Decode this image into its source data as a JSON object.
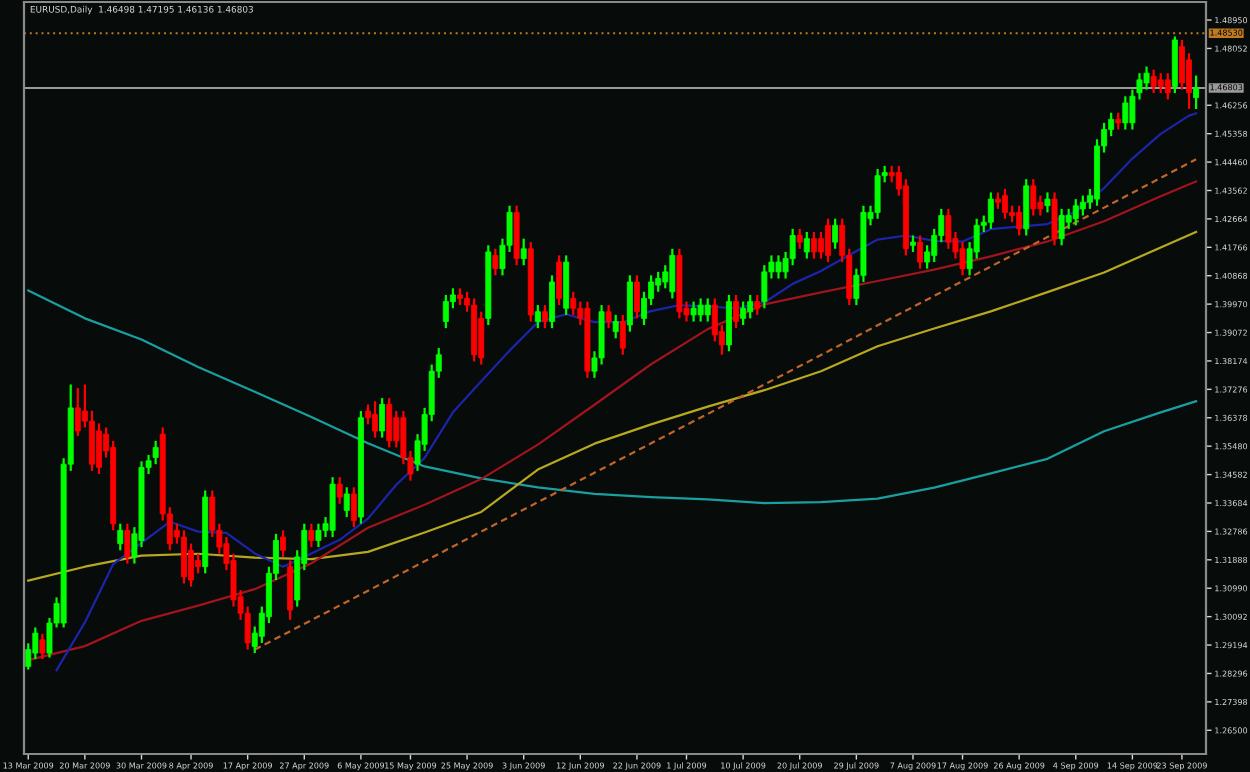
{
  "chart_data": {
    "type": "candlestick",
    "title": "EURUSD,Daily  1.46498 1.47195 1.46136 1.46803",
    "categories": [
      "13 Mar 2009",
      null,
      null,
      null,
      null,
      null,
      null,
      null,
      "20 Mar 2009",
      null,
      null,
      null,
      null,
      null,
      null,
      null,
      "30 Mar 2009",
      null,
      null,
      null,
      null,
      null,
      null,
      "8 Apr 2009",
      null,
      null,
      null,
      null,
      null,
      null,
      null,
      "17 Apr 2009",
      null,
      null,
      null,
      null,
      null,
      null,
      null,
      "27 Apr 2009",
      null,
      null,
      null,
      null,
      null,
      null,
      null,
      "6 May 2009",
      null,
      null,
      null,
      null,
      null,
      null,
      "15 May 2009",
      null,
      null,
      null,
      null,
      null,
      null,
      null,
      "25 May 2009",
      null,
      null,
      null,
      null,
      null,
      null,
      null,
      "3 Jun 2009",
      null,
      null,
      null,
      null,
      null,
      null,
      null,
      "12 Jun 2009",
      null,
      null,
      null,
      null,
      null,
      null,
      null,
      "22 Jun 2009",
      null,
      null,
      null,
      null,
      null,
      null,
      "1 Jul 2009",
      null,
      null,
      null,
      null,
      null,
      null,
      null,
      "10 Jul 2009",
      null,
      null,
      null,
      null,
      null,
      null,
      null,
      "20 Jul 2009",
      null,
      null,
      null,
      null,
      null,
      null,
      null,
      "29 Jul 2009",
      null,
      null,
      null,
      null,
      null,
      null,
      null,
      "7 Aug 2009",
      null,
      null,
      null,
      null,
      null,
      null,
      "17 Aug 2009",
      null,
      null,
      null,
      null,
      null,
      null,
      null,
      "26 Aug 2009",
      null,
      null,
      null,
      null,
      null,
      null,
      null,
      "4 Sep 2009",
      null,
      null,
      null,
      null,
      null,
      null,
      null,
      "14 Sep 2009",
      null,
      null,
      null,
      null,
      null,
      null,
      "23 Sep 2009",
      null,
      null
    ],
    "ohlc": [
      [
        1.2852,
        1.2925,
        1.2842,
        1.2905
      ],
      [
        1.2894,
        1.2975,
        1.2875,
        1.2957
      ],
      [
        1.2936,
        1.2955,
        1.2875,
        1.2894
      ],
      [
        1.2894,
        1.3005,
        1.288,
        1.2989
      ],
      [
        1.2989,
        1.307,
        1.2975,
        1.3051
      ],
      [
        1.2989,
        1.351,
        1.2975,
        1.3491
      ],
      [
        1.3491,
        1.3743,
        1.347,
        1.3669
      ],
      [
        1.3669,
        1.3732,
        1.358,
        1.3596
      ],
      [
        1.3659,
        1.3743,
        1.3607,
        1.3627
      ],
      [
        1.3627,
        1.366,
        1.347,
        1.3491
      ],
      [
        1.3596,
        1.362,
        1.346,
        1.3481
      ],
      [
        1.3586,
        1.3607,
        1.3512,
        1.3533
      ],
      [
        1.3544,
        1.3565,
        1.3282,
        1.3303
      ],
      [
        1.324,
        1.3303,
        1.3219,
        1.3282
      ],
      [
        1.3282,
        1.3303,
        1.3177,
        1.3198
      ],
      [
        1.3198,
        1.3292,
        1.3177,
        1.3271
      ],
      [
        1.325,
        1.35,
        1.3229,
        1.3481
      ],
      [
        1.3481,
        1.352,
        1.346,
        1.3502
      ],
      [
        1.3512,
        1.3565,
        1.3491,
        1.3544
      ],
      [
        1.3586,
        1.3607,
        1.3313,
        1.3334
      ],
      [
        1.3334,
        1.3355,
        1.3219,
        1.324
      ],
      [
        1.3282,
        1.3303,
        1.324,
        1.3261
      ],
      [
        1.3261,
        1.3282,
        1.3114,
        1.3135
      ],
      [
        1.3219,
        1.324,
        1.3104,
        1.3125
      ],
      [
        1.3187,
        1.3208,
        1.3146,
        1.3167
      ],
      [
        1.3167,
        1.3408,
        1.3146,
        1.3387
      ],
      [
        1.3387,
        1.3408,
        1.3261,
        1.3282
      ],
      [
        1.3282,
        1.3303,
        1.3208,
        1.3229
      ],
      [
        1.324,
        1.3261,
        1.3156,
        1.3177
      ],
      [
        1.3187,
        1.3208,
        1.3041,
        1.3062
      ],
      [
        1.3072,
        1.3093,
        1.2999,
        1.302
      ],
      [
        1.302,
        1.3041,
        1.2905,
        1.2926
      ],
      [
        1.2915,
        1.2978,
        1.2894,
        1.2957
      ],
      [
        1.2947,
        1.3041,
        1.2926,
        1.302
      ],
      [
        1.3009,
        1.3167,
        1.2989,
        1.3146
      ],
      [
        1.3146,
        1.3271,
        1.3125,
        1.325
      ],
      [
        1.3261,
        1.3282,
        1.3198,
        1.3219
      ],
      [
        1.3167,
        1.3187,
        1.2999,
        1.303
      ],
      [
        1.3062,
        1.3219,
        1.3041,
        1.3198
      ],
      [
        1.3177,
        1.3303,
        1.3156,
        1.3282
      ],
      [
        1.3282,
        1.3303,
        1.3229,
        1.325
      ],
      [
        1.325,
        1.3303,
        1.3229,
        1.3282
      ],
      [
        1.3282,
        1.3324,
        1.3261,
        1.3303
      ],
      [
        1.3282,
        1.345,
        1.3261,
        1.3428
      ],
      [
        1.3428,
        1.345,
        1.3366,
        1.3387
      ],
      [
        1.3345,
        1.3418,
        1.3324,
        1.3397
      ],
      [
        1.3397,
        1.3418,
        1.3292,
        1.3313
      ],
      [
        1.3324,
        1.3659,
        1.3303,
        1.3638
      ],
      [
        1.3659,
        1.368,
        1.3617,
        1.3638
      ],
      [
        1.3648,
        1.369,
        1.3575,
        1.3596
      ],
      [
        1.3596,
        1.37,
        1.3575,
        1.368
      ],
      [
        1.368,
        1.37,
        1.3544,
        1.3565
      ],
      [
        1.3638,
        1.3659,
        1.3544,
        1.3565
      ],
      [
        1.3638,
        1.3659,
        1.3491,
        1.3512
      ],
      [
        1.3512,
        1.3533,
        1.3439,
        1.346
      ],
      [
        1.3491,
        1.3586,
        1.347,
        1.3565
      ],
      [
        1.3554,
        1.3669,
        1.3533,
        1.3648
      ],
      [
        1.3648,
        1.3806,
        1.3627,
        1.3785
      ],
      [
        1.3785,
        1.3858,
        1.3764,
        1.3837
      ],
      [
        1.3942,
        1.4026,
        1.3921,
        1.4005
      ],
      [
        1.4005,
        1.4047,
        1.3984,
        1.4026
      ],
      [
        1.4026,
        1.4047,
        1.3994,
        1.4015
      ],
      [
        1.4015,
        1.4036,
        1.3973,
        1.3994
      ],
      [
        1.3994,
        1.4015,
        1.3816,
        1.3837
      ],
      [
        1.3952,
        1.3973,
        1.3806,
        1.3827
      ],
      [
        1.3952,
        1.4183,
        1.3931,
        1.4162
      ],
      [
        1.4151,
        1.4172,
        1.4088,
        1.4109
      ],
      [
        1.4109,
        1.4204,
        1.4088,
        1.4183
      ],
      [
        1.4183,
        1.4308,
        1.4162,
        1.4287
      ],
      [
        1.4287,
        1.4308,
        1.412,
        1.4141
      ],
      [
        1.4141,
        1.4204,
        1.412,
        1.4172
      ],
      [
        1.4172,
        1.4193,
        1.3942,
        1.3963
      ],
      [
        1.3942,
        1.3994,
        1.3921,
        1.3973
      ],
      [
        1.3973,
        1.3994,
        1.3921,
        1.3942
      ],
      [
        1.3942,
        1.4088,
        1.3921,
        1.4067
      ],
      [
        1.413,
        1.4151,
        1.3994,
        1.4015
      ],
      [
        1.3984,
        1.4151,
        1.3963,
        1.413
      ],
      [
        1.4015,
        1.4036,
        1.3963,
        1.3984
      ],
      [
        1.3984,
        1.4005,
        1.3931,
        1.3952
      ],
      [
        1.3984,
        1.4005,
        1.3764,
        1.3785
      ],
      [
        1.3785,
        1.3848,
        1.3764,
        1.3827
      ],
      [
        1.3827,
        1.3994,
        1.3806,
        1.3973
      ],
      [
        1.3973,
        1.3994,
        1.3921,
        1.3942
      ],
      [
        1.391,
        1.3963,
        1.3889,
        1.3942
      ],
      [
        1.3942,
        1.3963,
        1.3837,
        1.3858
      ],
      [
        1.3931,
        1.4088,
        1.391,
        1.4067
      ],
      [
        1.4067,
        1.4088,
        1.3952,
        1.3973
      ],
      [
        1.3952,
        1.4036,
        1.3931,
        1.4015
      ],
      [
        1.4015,
        1.4088,
        1.3994,
        1.4067
      ],
      [
        1.4057,
        1.4099,
        1.4036,
        1.4078
      ],
      [
        1.4067,
        1.412,
        1.4047,
        1.4099
      ],
      [
        1.4036,
        1.4172,
        1.4015,
        1.4151
      ],
      [
        1.4151,
        1.4172,
        1.3952,
        1.3973
      ],
      [
        1.3984,
        1.4005,
        1.3942,
        1.3963
      ],
      [
        1.3963,
        1.4005,
        1.3942,
        1.3984
      ],
      [
        1.3963,
        1.4015,
        1.3942,
        1.3994
      ],
      [
        1.3963,
        1.4015,
        1.3942,
        1.3994
      ],
      [
        1.3994,
        1.4015,
        1.3879,
        1.39
      ],
      [
        1.391,
        1.3931,
        1.3837,
        1.3868
      ],
      [
        1.3868,
        1.4026,
        1.3848,
        1.4005
      ],
      [
        1.4005,
        1.4026,
        1.3921,
        1.3942
      ],
      [
        1.3952,
        1.4005,
        1.3931,
        1.3984
      ],
      [
        1.3973,
        1.4026,
        1.3952,
        1.4005
      ],
      [
        1.4005,
        1.4026,
        1.3963,
        1.3984
      ],
      [
        1.4005,
        1.412,
        1.3984,
        1.4099
      ],
      [
        1.4099,
        1.4151,
        1.4078,
        1.413
      ],
      [
        1.4099,
        1.4151,
        1.4078,
        1.413
      ],
      [
        1.4099,
        1.4162,
        1.4078,
        1.4141
      ],
      [
        1.4141,
        1.4235,
        1.412,
        1.4214
      ],
      [
        1.4214,
        1.4235,
        1.4172,
        1.4193
      ],
      [
        1.4162,
        1.4225,
        1.4141,
        1.4204
      ],
      [
        1.4204,
        1.4225,
        1.4141,
        1.4162
      ],
      [
        1.4204,
        1.4225,
        1.4141,
        1.4162
      ],
      [
        1.4246,
        1.4267,
        1.413,
        1.4151
      ],
      [
        1.4193,
        1.4267,
        1.4172,
        1.4246
      ],
      [
        1.4246,
        1.4267,
        1.413,
        1.4151
      ],
      [
        1.4151,
        1.4172,
        1.3994,
        1.4015
      ],
      [
        1.4015,
        1.4109,
        1.3994,
        1.4088
      ],
      [
        1.4088,
        1.4308,
        1.4067,
        1.4287
      ],
      [
        1.4267,
        1.4308,
        1.4246,
        1.4287
      ],
      [
        1.4287,
        1.4424,
        1.4267,
        1.4403
      ],
      [
        1.4403,
        1.4434,
        1.4382,
        1.4413
      ],
      [
        1.4413,
        1.4434,
        1.4382,
        1.4403
      ],
      [
        1.4413,
        1.4434,
        1.434,
        1.4361
      ],
      [
        1.4371,
        1.4392,
        1.4151,
        1.4172
      ],
      [
        1.4183,
        1.4214,
        1.4162,
        1.4193
      ],
      [
        1.4193,
        1.4214,
        1.4109,
        1.413
      ],
      [
        1.413,
        1.4183,
        1.4109,
        1.4162
      ],
      [
        1.4151,
        1.4235,
        1.413,
        1.4214
      ],
      [
        1.4214,
        1.4298,
        1.4193,
        1.4277
      ],
      [
        1.4277,
        1.4298,
        1.4172,
        1.4193
      ],
      [
        1.4204,
        1.4225,
        1.4141,
        1.4162
      ],
      [
        1.4172,
        1.4193,
        1.4088,
        1.4109
      ],
      [
        1.4109,
        1.4193,
        1.4088,
        1.4172
      ],
      [
        1.4162,
        1.4267,
        1.4141,
        1.4246
      ],
      [
        1.4246,
        1.4277,
        1.4225,
        1.4256
      ],
      [
        1.4256,
        1.435,
        1.4235,
        1.4329
      ],
      [
        1.4329,
        1.435,
        1.4298,
        1.4319
      ],
      [
        1.434,
        1.4361,
        1.4267,
        1.4287
      ],
      [
        1.4287,
        1.4308,
        1.4256,
        1.4277
      ],
      [
        1.4287,
        1.4308,
        1.4214,
        1.4235
      ],
      [
        1.4235,
        1.4392,
        1.4214,
        1.4371
      ],
      [
        1.4371,
        1.4392,
        1.4277,
        1.4298
      ],
      [
        1.4319,
        1.434,
        1.4277,
        1.4298
      ],
      [
        1.4308,
        1.435,
        1.4287,
        1.4329
      ],
      [
        1.4329,
        1.435,
        1.4183,
        1.4204
      ],
      [
        1.4204,
        1.4298,
        1.4183,
        1.4277
      ],
      [
        1.4256,
        1.4298,
        1.4235,
        1.4277
      ],
      [
        1.4267,
        1.4329,
        1.4246,
        1.4308
      ],
      [
        1.4298,
        1.434,
        1.4277,
        1.4319
      ],
      [
        1.4319,
        1.4361,
        1.4298,
        1.434
      ],
      [
        1.4329,
        1.4518,
        1.4308,
        1.4497
      ],
      [
        1.4497,
        1.457,
        1.4476,
        1.4549
      ],
      [
        1.4549,
        1.4602,
        1.4528,
        1.4581
      ],
      [
        1.4581,
        1.4602,
        1.4549,
        1.457
      ],
      [
        1.457,
        1.4654,
        1.4549,
        1.4633
      ],
      [
        1.457,
        1.4675,
        1.4549,
        1.4654
      ],
      [
        1.4665,
        1.4727,
        1.4644,
        1.4706
      ],
      [
        1.4696,
        1.4748,
        1.4675,
        1.4727
      ],
      [
        1.4717,
        1.4738,
        1.4664,
        1.4685
      ],
      [
        1.4706,
        1.4727,
        1.4664,
        1.4685
      ],
      [
        1.4706,
        1.4727,
        1.4644,
        1.4665
      ],
      [
        1.4685,
        1.4843,
        1.4664,
        1.4832
      ],
      [
        1.4811,
        1.4832,
        1.4675,
        1.4696
      ],
      [
        1.4769,
        1.479,
        1.4614,
        1.4665
      ],
      [
        1.46498,
        1.47195,
        1.46136,
        1.46803
      ]
    ],
    "colors": [
      "#00ff00",
      "#00ff00",
      "#ff0000",
      "#00ff00",
      "#00ff00",
      "#00ff00",
      "#00ff00",
      "#ff0000",
      "#ff0000",
      "#ff0000",
      "#ff0000",
      "#ff0000",
      "#ff0000",
      "#00ff00",
      "#ff0000",
      "#00ff00",
      "#00ff00",
      "#00ff00",
      "#00ff00",
      "#ff0000",
      "#ff0000",
      "#ff0000",
      "#ff0000",
      "#ff0000",
      "#ff0000",
      "#00ff00",
      "#ff0000",
      "#ff0000",
      "#ff0000",
      "#ff0000",
      "#ff0000",
      "#ff0000",
      "#00ff00",
      "#00ff00",
      "#00ff00",
      "#00ff00",
      "#ff0000",
      "#ff0000",
      "#00ff00",
      "#00ff00",
      "#ff0000",
      "#00ff00",
      "#00ff00",
      "#00ff00",
      "#ff0000",
      "#00ff00",
      "#ff0000",
      "#00ff00",
      "#ff0000",
      "#ff0000",
      "#00ff00",
      "#ff0000",
      "#ff0000",
      "#ff0000",
      "#ff0000",
      "#00ff00",
      "#00ff00",
      "#00ff00",
      "#00ff00",
      "#00ff00",
      "#00ff00",
      "#ff0000",
      "#ff0000",
      "#ff0000",
      "#ff0000",
      "#00ff00",
      "#ff0000",
      "#00ff00",
      "#00ff00",
      "#ff0000",
      "#00ff00",
      "#ff0000",
      "#00ff00",
      "#ff0000",
      "#00ff00",
      "#ff0000",
      "#00ff00",
      "#ff0000",
      "#ff0000",
      "#ff0000",
      "#00ff00",
      "#00ff00",
      "#ff0000",
      "#00ff00",
      "#ff0000",
      "#00ff00",
      "#ff0000",
      "#00ff00",
      "#00ff00",
      "#00ff00",
      "#00ff00",
      "#00ff00",
      "#ff0000",
      "#ff0000",
      "#00ff00",
      "#00ff00",
      "#00ff00",
      "#ff0000",
      "#ff0000",
      "#00ff00",
      "#ff0000",
      "#00ff00",
      "#00ff00",
      "#ff0000",
      "#00ff00",
      "#00ff00",
      "#00ff00",
      "#00ff00",
      "#00ff00",
      "#ff0000",
      "#00ff00",
      "#ff0000",
      "#ff0000",
      "#ff0000",
      "#00ff00",
      "#ff0000",
      "#ff0000",
      "#00ff00",
      "#00ff00",
      "#00ff00",
      "#00ff00",
      "#00ff00",
      "#ff0000",
      "#ff0000",
      "#ff0000",
      "#00ff00",
      "#ff0000",
      "#00ff00",
      "#00ff00",
      "#00ff00",
      "#ff0000",
      "#ff0000",
      "#ff0000",
      "#00ff00",
      "#00ff00",
      "#00ff00",
      "#00ff00",
      "#ff0000",
      "#ff0000",
      "#ff0000",
      "#ff0000",
      "#00ff00",
      "#ff0000",
      "#ff0000",
      "#00ff00",
      "#ff0000",
      "#00ff00",
      "#00ff00",
      "#00ff00",
      "#00ff00",
      "#00ff00",
      "#00ff00",
      "#00ff00",
      "#00ff00",
      "#ff0000",
      "#00ff00",
      "#00ff00",
      "#00ff00",
      "#00ff00",
      "#ff0000",
      "#ff0000",
      "#ff0000",
      "#00ff00",
      "#ff0000",
      "#ff0000",
      "#00ff00"
    ],
    "series": [
      {
        "type": "line",
        "color": "#1a9fa0",
        "line_style": "solid",
        "values": [
          1.404,
          null,
          null,
          null,
          null,
          null,
          null,
          null,
          1.3952,
          null,
          null,
          null,
          null,
          null,
          null,
          null,
          1.3885,
          null,
          null,
          null,
          null,
          null,
          null,
          null,
          1.3798,
          null,
          null,
          null,
          null,
          null,
          null,
          null,
          1.372,
          null,
          null,
          null,
          null,
          null,
          null,
          null,
          1.364,
          null,
          null,
          null,
          null,
          null,
          null,
          null,
          1.3557,
          null,
          null,
          null,
          null,
          null,
          null,
          null,
          1.3484,
          null,
          null,
          null,
          null,
          null,
          null,
          null,
          1.3446,
          null,
          null,
          null,
          null,
          null,
          null,
          null,
          1.3418,
          null,
          null,
          null,
          null,
          null,
          null,
          null,
          1.3397,
          null,
          null,
          null,
          null,
          null,
          null,
          null,
          1.3387,
          null,
          null,
          null,
          null,
          null,
          null,
          null,
          1.338,
          null,
          null,
          null,
          null,
          null,
          null,
          null,
          1.3368,
          null,
          null,
          null,
          null,
          null,
          null,
          null,
          1.3371,
          null,
          null,
          null,
          null,
          null,
          null,
          null,
          1.3382,
          null,
          null,
          null,
          null,
          null,
          null,
          null,
          1.3417,
          null,
          null,
          null,
          null,
          null,
          null,
          null,
          1.3462,
          null,
          null,
          null,
          null,
          null,
          null,
          null,
          1.3508,
          null,
          null,
          null,
          null,
          null,
          null,
          null,
          1.3595,
          null,
          null,
          null,
          null,
          null,
          null,
          null,
          1.3655,
          null,
          null,
          null,
          null,
          1.369
        ]
      },
      {
        "type": "line",
        "color": "#b8a820",
        "line_style": "solid",
        "values": [
          1.3123,
          null,
          null,
          null,
          null,
          null,
          null,
          null,
          1.3167,
          null,
          null,
          null,
          null,
          null,
          null,
          null,
          1.3202,
          null,
          null,
          null,
          null,
          null,
          null,
          null,
          1.3208,
          null,
          null,
          null,
          null,
          null,
          null,
          null,
          1.3196,
          null,
          null,
          null,
          null,
          null,
          null,
          null,
          1.3191,
          null,
          null,
          null,
          null,
          null,
          null,
          null,
          1.3214,
          null,
          null,
          null,
          null,
          null,
          null,
          null,
          1.3275,
          null,
          null,
          null,
          null,
          null,
          null,
          null,
          1.334,
          null,
          null,
          null,
          null,
          null,
          null,
          null,
          1.3474,
          null,
          null,
          null,
          null,
          null,
          null,
          null,
          1.3556,
          null,
          null,
          null,
          null,
          null,
          null,
          null,
          1.3617,
          null,
          null,
          null,
          null,
          null,
          null,
          null,
          1.3673,
          null,
          null,
          null,
          null,
          null,
          null,
          null,
          1.3725,
          null,
          null,
          null,
          null,
          null,
          null,
          null,
          1.3785,
          null,
          null,
          null,
          null,
          null,
          null,
          null,
          1.3864,
          null,
          null,
          null,
          null,
          null,
          null,
          null,
          1.392,
          null,
          null,
          null,
          null,
          null,
          null,
          null,
          1.3974,
          null,
          null,
          null,
          null,
          null,
          null,
          null,
          1.4035,
          null,
          null,
          null,
          null,
          null,
          null,
          null,
          1.4097,
          null,
          null,
          null,
          null,
          null,
          null,
          null,
          1.4176,
          null,
          null,
          null,
          null,
          1.4225
        ]
      },
      {
        "type": "line",
        "color": "#a0141e",
        "line_style": "solid",
        "values": [
          1.2872,
          null,
          null,
          null,
          null,
          null,
          null,
          null,
          1.2916,
          null,
          null,
          null,
          null,
          null,
          null,
          null,
          1.2996,
          null,
          null,
          null,
          null,
          null,
          null,
          null,
          1.3044,
          null,
          null,
          null,
          null,
          null,
          null,
          null,
          1.3096,
          null,
          null,
          null,
          null,
          null,
          null,
          null,
          1.3178,
          null,
          null,
          null,
          null,
          null,
          null,
          null,
          1.329,
          null,
          null,
          null,
          null,
          null,
          null,
          null,
          1.3363,
          null,
          null,
          null,
          null,
          null,
          null,
          null,
          1.3444,
          null,
          null,
          null,
          null,
          null,
          null,
          null,
          1.3553,
          null,
          null,
          null,
          null,
          null,
          null,
          null,
          1.3679,
          null,
          null,
          null,
          null,
          null,
          null,
          null,
          1.3807,
          null,
          null,
          null,
          null,
          null,
          null,
          null,
          1.3918,
          null,
          null,
          null,
          null,
          null,
          null,
          null,
          1.3996,
          null,
          null,
          null,
          null,
          null,
          null,
          null,
          1.4034,
          null,
          null,
          null,
          null,
          null,
          null,
          null,
          1.407,
          null,
          null,
          null,
          null,
          null,
          null,
          null,
          1.4106,
          null,
          null,
          null,
          null,
          null,
          null,
          null,
          1.4148,
          null,
          null,
          null,
          null,
          null,
          null,
          null,
          1.4195,
          null,
          null,
          null,
          null,
          null,
          null,
          null,
          1.4259,
          null,
          null,
          null,
          null,
          null,
          null,
          null,
          1.4338,
          null,
          null,
          null,
          null,
          1.4385
        ]
      },
      {
        "type": "line",
        "color": "#1c24a8",
        "line_style": "solid",
        "values": [
          null,
          null,
          null,
          null,
          1.284,
          null,
          null,
          null,
          1.2991,
          null,
          null,
          null,
          1.3175,
          null,
          null,
          null,
          1.3242,
          null,
          null,
          null,
          1.3309,
          null,
          null,
          null,
          1.3278,
          null,
          null,
          null,
          1.3274,
          null,
          null,
          null,
          1.3209,
          null,
          null,
          null,
          1.3167,
          null,
          null,
          null,
          1.3209,
          null,
          null,
          null,
          1.3252,
          null,
          null,
          null,
          1.3319,
          null,
          null,
          null,
          1.3426,
          null,
          null,
          null,
          1.3511,
          null,
          null,
          null,
          1.3655,
          null,
          null,
          null,
          1.3753,
          null,
          null,
          null,
          1.385,
          null,
          null,
          null,
          1.394,
          null,
          null,
          null,
          1.3965,
          null,
          null,
          null,
          1.394,
          null,
          null,
          null,
          1.394,
          null,
          null,
          null,
          1.3975,
          null,
          null,
          null,
          1.3994,
          null,
          null,
          null,
          1.3989,
          null,
          null,
          null,
          1.3984,
          null,
          null,
          null,
          1.4002,
          null,
          null,
          null,
          1.4061,
          null,
          null,
          null,
          1.4102,
          null,
          null,
          null,
          1.4152,
          null,
          null,
          null,
          1.4201,
          null,
          null,
          null,
          1.4214,
          null,
          null,
          null,
          1.4197,
          null,
          null,
          null,
          1.4195,
          null,
          null,
          null,
          1.4234,
          null,
          null,
          null,
          1.4242,
          null,
          null,
          null,
          1.425,
          null,
          null,
          null,
          1.429,
          null,
          null,
          null,
          1.4364,
          null,
          null,
          null,
          1.4457,
          null,
          null,
          null,
          1.4535,
          null,
          null,
          null,
          1.4593,
          1.46
        ]
      },
      {
        "type": "line",
        "color": "#c0642a",
        "line_style": "dashed",
        "values": [
          null,
          null,
          null,
          null,
          null,
          null,
          null,
          null,
          null,
          null,
          null,
          null,
          null,
          null,
          null,
          null,
          null,
          null,
          null,
          null,
          null,
          null,
          null,
          null,
          null,
          null,
          null,
          null,
          null,
          null,
          null,
          null,
          1.2905,
          null,
          null,
          null,
          null,
          null,
          null,
          null,
          1.2998,
          null,
          null,
          null,
          null,
          null,
          null,
          null,
          1.3091,
          null,
          null,
          null,
          null,
          null,
          null,
          null,
          1.3184,
          null,
          null,
          null,
          null,
          null,
          null,
          null,
          1.3278,
          null,
          null,
          null,
          null,
          null,
          null,
          null,
          1.3371,
          null,
          null,
          null,
          null,
          null,
          null,
          null,
          1.3464,
          null,
          null,
          null,
          null,
          null,
          null,
          null,
          1.3557,
          null,
          null,
          null,
          null,
          null,
          null,
          null,
          1.365,
          null,
          null,
          null,
          null,
          null,
          null,
          null,
          1.3743,
          null,
          null,
          null,
          null,
          null,
          null,
          null,
          1.3836,
          null,
          null,
          null,
          null,
          null,
          null,
          null,
          1.393,
          null,
          null,
          null,
          null,
          null,
          null,
          null,
          1.4023,
          null,
          null,
          null,
          null,
          null,
          null,
          null,
          1.4116,
          null,
          null,
          null,
          null,
          null,
          null,
          null,
          1.4209,
          null,
          null,
          null,
          null,
          null,
          null,
          null,
          1.4302,
          null,
          null,
          null,
          null,
          null,
          null,
          null,
          1.4396,
          null,
          null,
          null,
          null,
          1.4455
        ]
      }
    ],
    "ref_lines": [
      {
        "axis": "y",
        "value": 1.4853,
        "label": "1.48530",
        "color": "#c07a20",
        "line_style": "dotted"
      },
      {
        "axis": "y",
        "value": 1.46803,
        "label": "1.46803",
        "color": "#9a9a9a",
        "line_style": "solid"
      }
    ],
    "ylim": [
      1.2575,
      1.4952
    ],
    "yticks": [
      {
        "value": 1.4895,
        "label": "1.48950"
      },
      {
        "value": 1.48052,
        "label": "1.48052"
      },
      {
        "value": 1.46256,
        "label": "1.46256"
      },
      {
        "value": 1.45358,
        "label": "1.45358"
      },
      {
        "value": 1.4446,
        "label": "1.44460"
      },
      {
        "value": 1.43562,
        "label": "1.43562"
      },
      {
        "value": 1.42664,
        "label": "1.42664"
      },
      {
        "value": 1.41766,
        "label": "1.41766"
      },
      {
        "value": 1.40868,
        "label": "1.40868"
      },
      {
        "value": 1.3997,
        "label": "1.39970"
      },
      {
        "value": 1.39072,
        "label": "1.39072"
      },
      {
        "value": 1.38174,
        "label": "1.38174"
      },
      {
        "value": 1.37276,
        "label": "1.37276"
      },
      {
        "value": 1.36378,
        "label": "1.36378"
      },
      {
        "value": 1.3548,
        "label": "1.35480"
      },
      {
        "value": 1.34582,
        "label": "1.34582"
      },
      {
        "value": 1.33684,
        "label": "1.33684"
      },
      {
        "value": 1.32786,
        "label": "1.32786"
      },
      {
        "value": 1.31888,
        "label": "1.31888"
      },
      {
        "value": 1.3099,
        "label": "1.30990"
      },
      {
        "value": 1.30092,
        "label": "1.30092"
      },
      {
        "value": 1.29194,
        "label": "1.29194"
      },
      {
        "value": 1.28296,
        "label": "1.28296"
      },
      {
        "value": 1.27398,
        "label": "1.27398"
      },
      {
        "value": 1.265,
        "label": "1.26500"
      }
    ],
    "grid": false
  }
}
